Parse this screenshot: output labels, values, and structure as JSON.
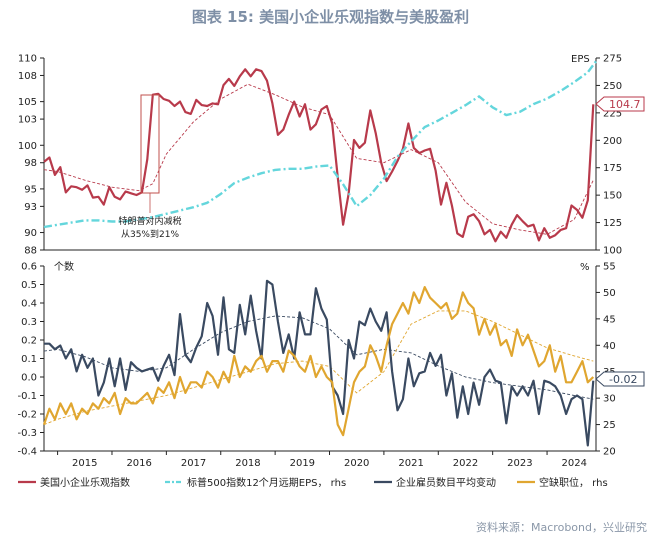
{
  "title": "图表 15: 美国小企业乐观指数与美股盈利",
  "source": "资料来源：Macrobond，兴业研究",
  "chart_data": [
    {
      "type": "line",
      "panel": "top",
      "left_axis_ticks": [
        "110",
        "108",
        "105",
        "103",
        "100",
        "98",
        "95",
        "93",
        "90",
        "88"
      ],
      "left_ylim": [
        88,
        110
      ],
      "right_axis_label": "EPS",
      "right_axis_ticks": [
        "275",
        "250",
        "225",
        "200",
        "175",
        "150",
        "125",
        "100"
      ],
      "right_ylim": [
        100,
        275
      ],
      "annotation": "特朗普对内减税\n从35%到21%",
      "end_label": "104.7",
      "series": [
        {
          "name": "美国小企业乐观指数",
          "color": "#b83a4b",
          "axis": "left",
          "x": [
            2014.75,
            2014.85,
            2014.95,
            2015.05,
            2015.15,
            2015.25,
            2015.35,
            2015.45,
            2015.55,
            2015.65,
            2015.75,
            2015.85,
            2015.95,
            2016.05,
            2016.15,
            2016.25,
            2016.35,
            2016.45,
            2016.55,
            2016.65,
            2016.75,
            2016.85,
            2016.95,
            2017.05,
            2017.15,
            2017.25,
            2017.35,
            2017.45,
            2017.55,
            2017.65,
            2017.75,
            2017.85,
            2017.95,
            2018.05,
            2018.15,
            2018.25,
            2018.35,
            2018.45,
            2018.55,
            2018.65,
            2018.75,
            2018.85,
            2018.95,
            2019.05,
            2019.15,
            2019.25,
            2019.35,
            2019.45,
            2019.55,
            2019.65,
            2019.75,
            2019.85,
            2019.95,
            2020.05,
            2020.15,
            2020.25,
            2020.35,
            2020.45,
            2020.55,
            2020.65,
            2020.75,
            2020.85,
            2020.95,
            2021.05,
            2021.15,
            2021.25,
            2021.35,
            2021.45,
            2021.55,
            2021.65,
            2021.75,
            2021.85,
            2021.95,
            2022.05,
            2022.15,
            2022.25,
            2022.35,
            2022.45,
            2022.55,
            2022.65,
            2022.75,
            2022.85,
            2022.95,
            2023.05,
            2023.15,
            2023.25,
            2023.35,
            2023.45,
            2023.55,
            2023.65,
            2023.75,
            2023.85,
            2023.95,
            2024.05,
            2024.15,
            2024.25,
            2024.35,
            2024.45,
            2024.55,
            2024.65,
            2024.75,
            2024.85
          ],
          "values": [
            98.1,
            98.6,
            96.6,
            97.5,
            94.6,
            95.3,
            95.2,
            94.9,
            95.4,
            94.0,
            94.1,
            93.2,
            95.2,
            94.1,
            93.8,
            94.7,
            94.5,
            94.3,
            94.6,
            98.4,
            105.8,
            105.9,
            105.3,
            105.1,
            104.5,
            105.0,
            103.8,
            103.6,
            105.2,
            104.6,
            104.5,
            104.8,
            104.7,
            106.9,
            107.6,
            106.8,
            107.9,
            108.7,
            107.9,
            108.7,
            108.5,
            107.4,
            104.8,
            101.2,
            101.8,
            103.5,
            105.0,
            103.3,
            104.7,
            101.8,
            102.4,
            104.1,
            104.5,
            102.5,
            96.4,
            90.9,
            94.4,
            100.6,
            99.7,
            100.3,
            104.0,
            101.4,
            98.0,
            95.9,
            97.0,
            98.2,
            99.6,
            102.5,
            99.7,
            99.1,
            99.4,
            99.6,
            97.1,
            93.2,
            95.7,
            93.1,
            89.9,
            89.5,
            91.8,
            92.1,
            91.3,
            89.8,
            90.3,
            89.0,
            90.1,
            89.4,
            90.9,
            92.0,
            91.3,
            90.7,
            90.9,
            89.1,
            90.5,
            89.4,
            89.7,
            90.3,
            90.5,
            93.1,
            92.6,
            91.7,
            93.7,
            104.7
          ]
        },
        {
          "name": "标普500指数12个月远期EPS，rhs",
          "color": "#64d6dc",
          "axis": "right",
          "x": [
            2014.75,
            2015.0,
            2015.25,
            2015.5,
            2015.75,
            2016.0,
            2016.25,
            2016.5,
            2016.75,
            2017.0,
            2017.25,
            2017.5,
            2017.75,
            2018.0,
            2018.25,
            2018.5,
            2018.75,
            2019.0,
            2019.25,
            2019.5,
            2019.75,
            2020.0,
            2020.25,
            2020.5,
            2020.75,
            2021.0,
            2021.25,
            2021.5,
            2021.75,
            2022.0,
            2022.25,
            2022.5,
            2022.75,
            2023.0,
            2023.25,
            2023.5,
            2023.75,
            2024.0,
            2024.25,
            2024.5,
            2024.75,
            2024.9
          ],
          "values": [
            121,
            123,
            125,
            127,
            127,
            126,
            126,
            128,
            130,
            133,
            136,
            139,
            143,
            151,
            161,
            166,
            170,
            173,
            174,
            174,
            176,
            177,
            160,
            140,
            150,
            165,
            185,
            199,
            212,
            218,
            225,
            232,
            240,
            230,
            223,
            226,
            233,
            238,
            245,
            253,
            262,
            272
          ]
        },
        {
          "name": "trend-small-business",
          "color": "#b83a4b",
          "dashed": true,
          "axis": "left",
          "x": [
            2014.75,
            2015.0,
            2015.5,
            2016.0,
            2016.5,
            2016.75,
            2017.0,
            2017.5,
            2018.0,
            2018.5,
            2019.0,
            2019.5,
            2020.0,
            2020.5,
            2021.0,
            2021.5,
            2022.0,
            2022.5,
            2023.0,
            2023.5,
            2024.0,
            2024.5,
            2024.85
          ],
          "values": [
            97.2,
            97.0,
            96.0,
            95.2,
            94.8,
            95.6,
            99.0,
            102.7,
            105.3,
            107.0,
            105.8,
            104.4,
            103.5,
            98.5,
            98.0,
            99.5,
            98.0,
            93.5,
            91.0,
            90.3,
            89.8,
            91.5,
            96.0
          ]
        }
      ]
    },
    {
      "type": "line",
      "panel": "bottom",
      "left_axis_label": "个数",
      "left_axis_ticks": [
        "0.6",
        "0.5",
        "0.4",
        "0.3",
        "0.2",
        "0.1",
        "0.0",
        "-0.1",
        "-0.2",
        "-0.3",
        "-0.4"
      ],
      "left_ylim": [
        -0.4,
        0.6
      ],
      "right_axis_label": "%",
      "right_axis_ticks": [
        "55",
        "50",
        "45",
        "40",
        "35",
        "30",
        "25",
        "20"
      ],
      "right_ylim": [
        20,
        55
      ],
      "categories": [
        "2015",
        "2016",
        "2017",
        "2018",
        "2019",
        "2020",
        "2021",
        "2022",
        "2023",
        "2024"
      ],
      "end_label": "-0.02",
      "series": [
        {
          "name": "企业雇员数目平均变动",
          "color": "#3a4a61",
          "axis": "left",
          "x": [
            2014.75,
            2014.85,
            2014.95,
            2015.05,
            2015.15,
            2015.25,
            2015.35,
            2015.45,
            2015.55,
            2015.65,
            2015.75,
            2015.85,
            2015.95,
            2016.05,
            2016.15,
            2016.25,
            2016.35,
            2016.45,
            2016.55,
            2016.65,
            2016.75,
            2016.85,
            2016.95,
            2017.05,
            2017.15,
            2017.25,
            2017.35,
            2017.45,
            2017.55,
            2017.65,
            2017.75,
            2017.85,
            2017.95,
            2018.05,
            2018.15,
            2018.25,
            2018.35,
            2018.45,
            2018.55,
            2018.65,
            2018.75,
            2018.85,
            2018.95,
            2019.05,
            2019.15,
            2019.25,
            2019.35,
            2019.45,
            2019.55,
            2019.65,
            2019.75,
            2019.85,
            2019.95,
            2020.05,
            2020.15,
            2020.25,
            2020.35,
            2020.45,
            2020.55,
            2020.65,
            2020.75,
            2020.85,
            2020.95,
            2021.05,
            2021.15,
            2021.25,
            2021.35,
            2021.45,
            2021.55,
            2021.65,
            2021.75,
            2021.85,
            2021.95,
            2022.05,
            2022.15,
            2022.25,
            2022.35,
            2022.45,
            2022.55,
            2022.65,
            2022.75,
            2022.85,
            2022.95,
            2023.05,
            2023.15,
            2023.25,
            2023.35,
            2023.45,
            2023.55,
            2023.65,
            2023.75,
            2023.85,
            2023.95,
            2024.05,
            2024.15,
            2024.25,
            2024.35,
            2024.45,
            2024.55,
            2024.65,
            2024.75,
            2024.85
          ],
          "values": [
            0.18,
            0.18,
            0.15,
            0.17,
            0.1,
            0.15,
            0.03,
            0.12,
            0.05,
            0.1,
            -0.1,
            -0.03,
            0.1,
            -0.05,
            0.1,
            -0.07,
            0.08,
            0.05,
            0.03,
            0.04,
            0.05,
            -0.02,
            0.06,
            0.12,
            0.01,
            0.34,
            0.12,
            0.08,
            0.16,
            0.22,
            0.4,
            0.33,
            0.12,
            0.43,
            0.15,
            0.13,
            0.39,
            0.23,
            0.44,
            0.25,
            0.1,
            0.52,
            0.5,
            0.3,
            0.13,
            0.23,
            0.1,
            0.35,
            0.23,
            0.23,
            0.48,
            0.37,
            0.31,
            -0.05,
            -0.1,
            -0.2,
            0.2,
            0.1,
            0.3,
            0.28,
            0.37,
            0.3,
            0.25,
            0.35,
            0.03,
            -0.18,
            -0.12,
            0.1,
            -0.05,
            0.02,
            0.03,
            0.13,
            0.06,
            0.12,
            -0.1,
            0.02,
            -0.22,
            -0.05,
            -0.2,
            -0.03,
            -0.15,
            0.0,
            0.04,
            -0.02,
            -0.03,
            -0.25,
            -0.05,
            -0.1,
            -0.05,
            -0.1,
            -0.02,
            -0.2,
            -0.02,
            -0.03,
            -0.05,
            -0.1,
            -0.2,
            -0.12,
            -0.1,
            -0.12,
            -0.37,
            -0.02
          ]
        },
        {
          "name": "空缺职位，rhs",
          "color": "#e0a630",
          "axis": "right",
          "x": [
            2014.75,
            2014.85,
            2014.95,
            2015.05,
            2015.15,
            2015.25,
            2015.35,
            2015.45,
            2015.55,
            2015.65,
            2015.75,
            2015.85,
            2015.95,
            2016.05,
            2016.15,
            2016.25,
            2016.35,
            2016.45,
            2016.55,
            2016.65,
            2016.75,
            2016.85,
            2016.95,
            2017.05,
            2017.15,
            2017.25,
            2017.35,
            2017.45,
            2017.55,
            2017.65,
            2017.75,
            2017.85,
            2017.95,
            2018.05,
            2018.15,
            2018.25,
            2018.35,
            2018.45,
            2018.55,
            2018.65,
            2018.75,
            2018.85,
            2018.95,
            2019.05,
            2019.15,
            2019.25,
            2019.35,
            2019.45,
            2019.55,
            2019.65,
            2019.75,
            2019.85,
            2019.95,
            2020.05,
            2020.15,
            2020.25,
            2020.35,
            2020.45,
            2020.55,
            2020.65,
            2020.75,
            2020.85,
            2020.95,
            2021.05,
            2021.15,
            2021.25,
            2021.35,
            2021.45,
            2021.55,
            2021.65,
            2021.75,
            2021.85,
            2021.95,
            2022.05,
            2022.15,
            2022.25,
            2022.35,
            2022.45,
            2022.55,
            2022.65,
            2022.75,
            2022.85,
            2022.95,
            2023.05,
            2023.15,
            2023.25,
            2023.35,
            2023.45,
            2023.55,
            2023.65,
            2023.75,
            2023.85,
            2023.95,
            2024.05,
            2024.15,
            2024.25,
            2024.35,
            2024.45,
            2024.55,
            2024.65,
            2024.75,
            2024.85
          ],
          "values": [
            25,
            28,
            26,
            29,
            27,
            29,
            26,
            28,
            27,
            29,
            28,
            30,
            29,
            31,
            27,
            30,
            29,
            29,
            30,
            31,
            29,
            32,
            31,
            33,
            30,
            34,
            31,
            33,
            33,
            32,
            35,
            34,
            32,
            35,
            33,
            38,
            34,
            36,
            35,
            37,
            38,
            35,
            37,
            37,
            35,
            39,
            38,
            36,
            35,
            38,
            34,
            36,
            34,
            33,
            25,
            23,
            28,
            33,
            35,
            36,
            40,
            38,
            35,
            40,
            44,
            46,
            48,
            46,
            50,
            48,
            51,
            49,
            48,
            47,
            48,
            45,
            46,
            50,
            48,
            47,
            42,
            45,
            42,
            44,
            40,
            41,
            38,
            43,
            40,
            42,
            39,
            36,
            37,
            40,
            35,
            38,
            33,
            33,
            35,
            37,
            33,
            34
          ]
        },
        {
          "name": "trend-employment",
          "color": "#3a4a61",
          "dashed": true,
          "axis": "left",
          "x": [
            2014.75,
            2015.0,
            2015.5,
            2016.0,
            2016.5,
            2017.0,
            2017.5,
            2018.0,
            2018.5,
            2019.0,
            2019.5,
            2020.0,
            2020.5,
            2021.0,
            2021.5,
            2022.0,
            2022.5,
            2023.0,
            2023.5,
            2024.0,
            2024.5,
            2024.85
          ],
          "values": [
            0.14,
            0.15,
            0.11,
            0.05,
            0.03,
            0.05,
            0.15,
            0.24,
            0.3,
            0.33,
            0.32,
            0.26,
            0.12,
            0.15,
            0.13,
            0.06,
            0.0,
            -0.03,
            -0.05,
            -0.07,
            -0.1,
            -0.12
          ]
        },
        {
          "name": "trend-openings",
          "color": "#e0a630",
          "dashed": true,
          "axis": "right",
          "x": [
            2014.75,
            2015.0,
            2015.5,
            2016.0,
            2016.5,
            2017.0,
            2017.5,
            2018.0,
            2018.5,
            2019.0,
            2019.5,
            2020.0,
            2020.5,
            2021.0,
            2021.5,
            2022.0,
            2022.5,
            2023.0,
            2023.5,
            2024.0,
            2024.5,
            2024.85
          ],
          "values": [
            25,
            26,
            27.5,
            28.5,
            29.5,
            30.5,
            32,
            33.5,
            35,
            36.5,
            37,
            36,
            31,
            35,
            44,
            46.5,
            46.5,
            44.5,
            42,
            39.5,
            38,
            37
          ]
        }
      ]
    }
  ],
  "legend": [
    {
      "label": "美国小企业乐观指数",
      "color": "#b83a4b",
      "style": "solid"
    },
    {
      "label": "标普500指数12个月远期EPS， rhs",
      "color": "#64d6dc",
      "style": "dashdot"
    },
    {
      "label": "企业雇员数目平均变动",
      "color": "#3a4a61",
      "style": "solid"
    },
    {
      "label": "空缺职位， rhs",
      "color": "#e0a630",
      "style": "solid"
    }
  ]
}
